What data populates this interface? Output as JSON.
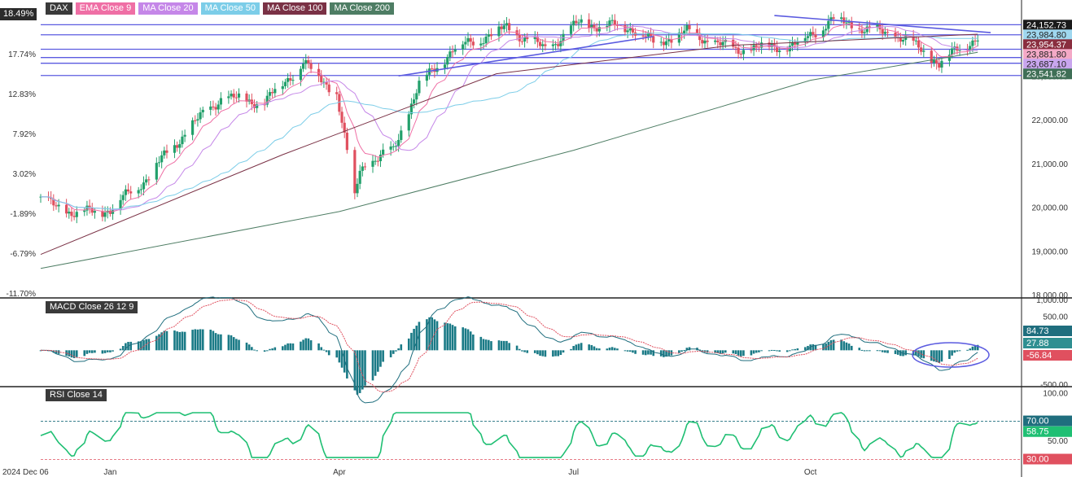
{
  "chart_data": {
    "type": "candlestick",
    "symbol": "DAX",
    "legend": [
      {
        "label": "DAX",
        "color": "#3a3a3a"
      },
      {
        "label": "EMA Close 9",
        "color": "#ef6fa5"
      },
      {
        "label": "MA Close 20",
        "color": "#c587e8"
      },
      {
        "label": "MA Close 50",
        "color": "#7ccde8"
      },
      {
        "label": "MA Close 100",
        "color": "#7a3145"
      },
      {
        "label": "MA Close 200",
        "color": "#4e7d64"
      }
    ],
    "colors": {
      "up": "#22a06b",
      "down": "#e0505f",
      "trendline": "#5b5be0",
      "macd": "#1f6e7e",
      "signal": "#e0505f",
      "hist": "#1a7a86",
      "rsi": "#1fbf73"
    },
    "y_axis": {
      "ticks": [
        "18,000.00",
        "19,000.00",
        "20,000.00",
        "21,000.00",
        "22,000.00",
        "23,000.00"
      ],
      "ylim": [
        18000,
        24400
      ]
    },
    "pct_axis": {
      "ticks": [
        "18.49%",
        "17.74%",
        "12.83%",
        "7.92%",
        "3.02%",
        "-1.89%",
        "-6.79%",
        "-11.70%"
      ]
    },
    "x_axis": {
      "labels": [
        "2024 Dec 06",
        "Jan",
        "Apr",
        "Jul",
        "Oct"
      ]
    },
    "price_tags": [
      {
        "label": "24,152.73",
        "value": 24152.73,
        "bg": "#1a1a1a"
      },
      {
        "label": "23,984.80",
        "value": 23984.8,
        "bg": "#9fd7ef",
        "fg": "#222"
      },
      {
        "label": "23,954.37",
        "value": 23954.37,
        "bg": "#8a2e3f"
      },
      {
        "label": "23,881.80",
        "value": 23881.8,
        "bg": "#f4a9c6",
        "fg": "#222"
      },
      {
        "label": "23,687.10",
        "value": 23687.1,
        "bg": "#c9a6ee",
        "fg": "#222"
      },
      {
        "label": "23,541.82",
        "value": 23541.82,
        "bg": "#3f6f56"
      }
    ],
    "horizontal_levels": [
      24170,
      23940,
      23610,
      23420,
      23290,
      23010
    ],
    "trendlines": [
      {
        "x": [
          "2025-04-24",
          "2025-08-01"
        ],
        "y": [
          23000,
          23900
        ]
      },
      {
        "x": [
          "2025-09-17",
          "2025-12-10"
        ],
        "y": [
          24380,
          23990
        ]
      }
    ],
    "ohlc_anchors": {
      "dates": [
        "2024-12-06",
        "2024-12-20",
        "2025-01-02",
        "2025-01-15",
        "2025-01-31",
        "2025-02-14",
        "2025-03-03",
        "2025-03-18",
        "2025-03-31",
        "2025-04-07",
        "2025-04-09",
        "2025-04-22",
        "2025-05-02",
        "2025-05-15",
        "2025-06-05",
        "2025-06-20",
        "2025-07-03",
        "2025-07-24",
        "2025-08-01",
        "2025-08-14",
        "2025-09-01",
        "2025-09-25",
        "2025-10-10",
        "2025-10-20",
        "2025-11-05",
        "2025-11-20",
        "2025-12-05"
      ],
      "close": [
        20150,
        19850,
        19950,
        20600,
        21700,
        22500,
        22400,
        23300,
        22600,
        20200,
        20900,
        21300,
        22800,
        23600,
        24100,
        23600,
        24200,
        24100,
        23750,
        24000,
        23600,
        23700,
        24300,
        24100,
        23900,
        23300,
        23900
      ]
    },
    "macd": {
      "label": "MACD Close 26 12 9",
      "ticks": [
        "1,000.00",
        "500.00",
        "-500.00"
      ],
      "ylim": [
        -500,
        700
      ],
      "values": [
        {
          "label": "84.73",
          "value": 84.73,
          "bg": "#1f6e7e"
        },
        {
          "label": "27.88",
          "value": 27.88,
          "bg": "#2f8f91"
        },
        {
          "label": "-56.84",
          "value": -56.84,
          "bg": "#e0505f"
        }
      ]
    },
    "rsi": {
      "label": "RSI Close 14",
      "ticks": [
        "100.00",
        "50.00"
      ],
      "ylim": [
        27,
        102
      ],
      "levels": [
        70,
        30
      ],
      "values": [
        {
          "label": "70.00",
          "value": 70,
          "bg": "#1f6e7e"
        },
        {
          "label": "58.75",
          "value": 58.75,
          "bg": "#1fbf73"
        },
        {
          "label": "30.00",
          "value": 30,
          "bg": "#e0505f"
        }
      ]
    }
  }
}
